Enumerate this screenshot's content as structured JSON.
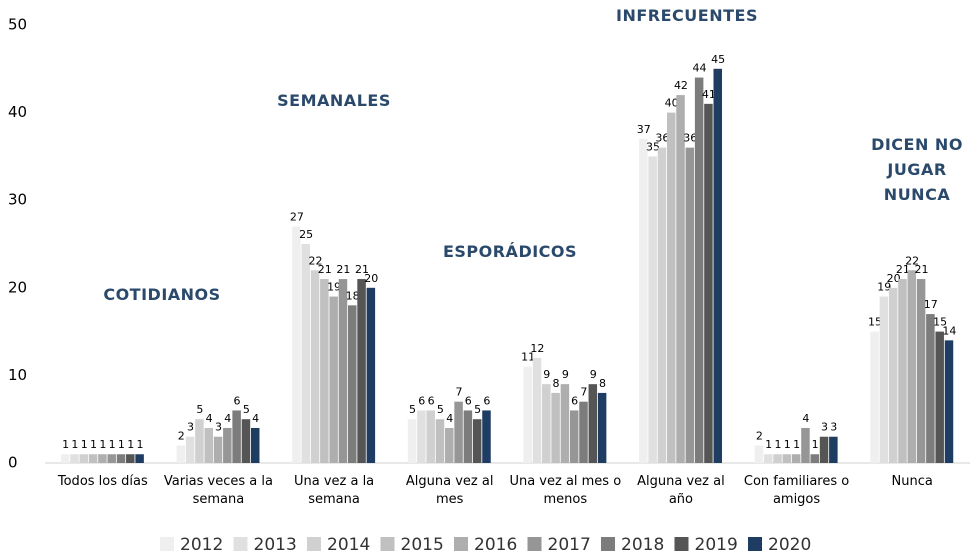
{
  "chart_data": {
    "type": "bar",
    "categories": [
      "Todos los días",
      "Varias veces a la semana",
      "Una vez a la semana",
      "Alguna vez al mes",
      "Una vez al mes o menos",
      "Alguna vez al año",
      "Con familiares o amigos",
      "Nunca"
    ],
    "series": [
      {
        "name": "2012",
        "color": "#efefef",
        "values": [
          1,
          2,
          27,
          5,
          11,
          37,
          2,
          15
        ]
      },
      {
        "name": "2013",
        "color": "#e0e0e0",
        "values": [
          1,
          3,
          25,
          6,
          12,
          35,
          1,
          19
        ]
      },
      {
        "name": "2014",
        "color": "#d0d0d0",
        "values": [
          1,
          5,
          22,
          6,
          9,
          36,
          1,
          20
        ]
      },
      {
        "name": "2015",
        "color": "#c0c0c0",
        "values": [
          1,
          4,
          21,
          5,
          8,
          40,
          1,
          21
        ]
      },
      {
        "name": "2016",
        "color": "#aeaeae",
        "values": [
          1,
          3,
          19,
          4,
          9,
          42,
          1,
          22
        ]
      },
      {
        "name": "2017",
        "color": "#969696",
        "values": [
          1,
          4,
          21,
          7,
          6,
          36,
          4,
          21
        ]
      },
      {
        "name": "2018",
        "color": "#7c7c7c",
        "values": [
          1,
          6,
          18,
          6,
          7,
          44,
          1,
          17
        ]
      },
      {
        "name": "2019",
        "color": "#555555",
        "values": [
          1,
          5,
          21,
          5,
          9,
          41,
          3,
          15
        ]
      },
      {
        "name": "2020",
        "color": "#1f3d63",
        "values": [
          1,
          4,
          20,
          6,
          8,
          45,
          3,
          14
        ]
      }
    ],
    "annotations": [
      "COTIDIANOS",
      "SEMANALES",
      "ESPORÁDICOS",
      "INFRECUENTES",
      "DICEN NO JUGAR NUNCA"
    ],
    "ylim": [
      0,
      50
    ],
    "yticks": [
      0,
      10,
      20,
      30,
      40,
      50
    ],
    "grid": false
  }
}
